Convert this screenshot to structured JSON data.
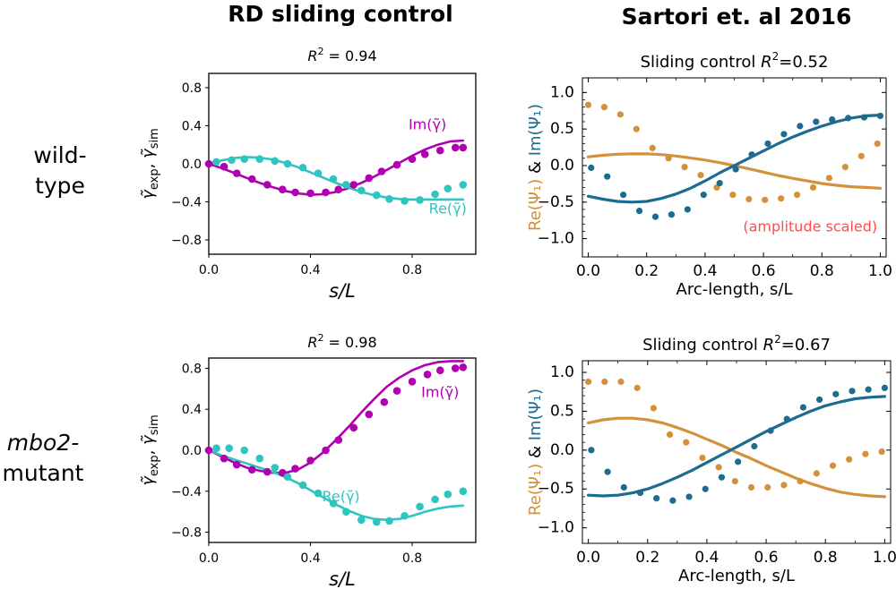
{
  "headers": {
    "left": "RD sliding control",
    "right": "Sartori et. al 2016"
  },
  "row_labels": {
    "wild_line1": "wild-",
    "wild_line2": "type",
    "mutant_line1": "mbo2-",
    "mutant_line2": "mutant"
  },
  "colors": {
    "im": "#b000b0",
    "re": "#2ec4c0",
    "sart_re": "#d4913b",
    "sart_im": "#1d6b8e",
    "note": "#ff4c4c"
  },
  "labels": {
    "left_x": "s/L",
    "left_y_gamma": "γ̃",
    "left_y_exp": "exp",
    "left_y_comma": ",",
    "left_y_sim": "sim",
    "left_im": "Im(γ̃)",
    "left_re": "Re(γ̃)",
    "right_x": "Arc-length, s/L",
    "right_y_re": "Re(Ψ₁)",
    "right_y_amp": " & ",
    "right_y_im": "Im(Ψ₁)"
  },
  "chart_data": [
    {
      "id": "rd_wildtype",
      "type": "line",
      "title": "R² = 0.94",
      "title_prefix": "R",
      "title_exp": "2",
      "title_value": " = 0.94",
      "xlabel": "s/L",
      "ylabel": "γ̃exp, γ̃sim",
      "xlim": [
        0,
        1.05
      ],
      "ylim": [
        -0.95,
        0.95
      ],
      "xticks": [
        0.0,
        0.4,
        0.8
      ],
      "xtick_labels": [
        "0.0",
        "0.4",
        "0.8"
      ],
      "yticks": [
        0.8,
        0.4,
        0.0,
        -0.4,
        -0.8
      ],
      "ytick_labels": [
        "0.8",
        "0.4",
        "0.0",
        "−0.4",
        "−0.8"
      ],
      "series": [
        {
          "name": "Im(γ̃)",
          "kind": "line",
          "color": "#b000b0",
          "x": [
            0,
            0.05,
            0.1,
            0.15,
            0.2,
            0.25,
            0.3,
            0.35,
            0.4,
            0.45,
            0.5,
            0.55,
            0.6,
            0.65,
            0.7,
            0.75,
            0.8,
            0.85,
            0.9,
            0.95,
            1.0
          ],
          "y": [
            0,
            -0.045,
            -0.095,
            -0.15,
            -0.2,
            -0.245,
            -0.285,
            -0.31,
            -0.325,
            -0.32,
            -0.295,
            -0.255,
            -0.2,
            -0.135,
            -0.065,
            0.01,
            0.085,
            0.15,
            0.2,
            0.235,
            0.245
          ]
        },
        {
          "name": "Re(γ̃)",
          "kind": "line",
          "color": "#2ec4c0",
          "x": [
            0,
            0.05,
            0.1,
            0.15,
            0.2,
            0.25,
            0.3,
            0.35,
            0.4,
            0.45,
            0.5,
            0.55,
            0.6,
            0.65,
            0.7,
            0.75,
            0.8,
            0.85,
            0.9,
            0.95,
            1.0
          ],
          "y": [
            0,
            0.035,
            0.06,
            0.07,
            0.065,
            0.045,
            0.01,
            -0.035,
            -0.09,
            -0.145,
            -0.2,
            -0.25,
            -0.295,
            -0.33,
            -0.355,
            -0.37,
            -0.375,
            -0.375,
            -0.375,
            -0.375,
            -0.375
          ]
        },
        {
          "name": "Im(γ̃) exp",
          "kind": "scatter",
          "color": "#b000b0",
          "x": [
            0,
            0.06,
            0.11,
            0.17,
            0.23,
            0.29,
            0.34,
            0.4,
            0.46,
            0.51,
            0.57,
            0.63,
            0.68,
            0.74,
            0.8,
            0.85,
            0.91,
            0.97,
            1.0
          ],
          "y": [
            0,
            -0.03,
            -0.1,
            -0.16,
            -0.22,
            -0.27,
            -0.3,
            -0.31,
            -0.3,
            -0.27,
            -0.22,
            -0.15,
            -0.08,
            -0.01,
            0.05,
            0.1,
            0.14,
            0.17,
            0.17
          ]
        },
        {
          "name": "Re(γ̃) exp",
          "kind": "scatter",
          "color": "#2ec4c0",
          "x": [
            0.03,
            0.09,
            0.14,
            0.2,
            0.26,
            0.31,
            0.37,
            0.43,
            0.49,
            0.54,
            0.6,
            0.66,
            0.71,
            0.77,
            0.83,
            0.89,
            0.94,
            1.0
          ],
          "y": [
            0.02,
            0.04,
            0.05,
            0.05,
            0.03,
            0.0,
            -0.04,
            -0.1,
            -0.16,
            -0.22,
            -0.28,
            -0.33,
            -0.37,
            -0.39,
            -0.38,
            -0.32,
            -0.26,
            -0.22
          ]
        }
      ]
    },
    {
      "id": "rd_mutant",
      "type": "line",
      "title": "R² = 0.98",
      "title_prefix": "R",
      "title_exp": "2",
      "title_value": " = 0.98",
      "xlabel": "s/L",
      "ylabel": "γ̃exp, γ̃sim",
      "xlim": [
        0,
        1.05
      ],
      "ylim": [
        -0.9,
        0.9
      ],
      "xticks": [
        0.0,
        0.4,
        0.8
      ],
      "xtick_labels": [
        "0.0",
        "0.4",
        "0.8"
      ],
      "yticks": [
        0.8,
        0.4,
        0.0,
        -0.4,
        -0.8
      ],
      "ytick_labels": [
        "0.8",
        "0.4",
        "0.0",
        "−0.4",
        "−0.8"
      ],
      "series": [
        {
          "name": "Im(γ̃)",
          "kind": "line",
          "color": "#b000b0",
          "x": [
            0,
            0.05,
            0.1,
            0.15,
            0.2,
            0.25,
            0.3,
            0.35,
            0.4,
            0.45,
            0.5,
            0.55,
            0.6,
            0.65,
            0.7,
            0.75,
            0.8,
            0.85,
            0.9,
            0.95,
            1.0
          ],
          "y": [
            0,
            -0.06,
            -0.12,
            -0.17,
            -0.2,
            -0.22,
            -0.22,
            -0.19,
            -0.12,
            -0.02,
            0.1,
            0.23,
            0.37,
            0.5,
            0.62,
            0.71,
            0.78,
            0.83,
            0.86,
            0.87,
            0.87
          ]
        },
        {
          "name": "Re(γ̃)",
          "kind": "line",
          "color": "#2ec4c0",
          "x": [
            0,
            0.05,
            0.1,
            0.15,
            0.2,
            0.25,
            0.3,
            0.35,
            0.4,
            0.45,
            0.5,
            0.55,
            0.6,
            0.65,
            0.7,
            0.75,
            0.8,
            0.85,
            0.9,
            0.95,
            1.0
          ],
          "y": [
            0,
            -0.05,
            -0.09,
            -0.13,
            -0.17,
            -0.21,
            -0.26,
            -0.32,
            -0.39,
            -0.46,
            -0.53,
            -0.59,
            -0.64,
            -0.67,
            -0.68,
            -0.67,
            -0.64,
            -0.6,
            -0.57,
            -0.55,
            -0.54
          ]
        },
        {
          "name": "Im(γ̃) exp",
          "kind": "scatter",
          "color": "#b000b0",
          "x": [
            0,
            0.06,
            0.11,
            0.17,
            0.23,
            0.29,
            0.34,
            0.4,
            0.46,
            0.51,
            0.57,
            0.63,
            0.69,
            0.74,
            0.8,
            0.86,
            0.91,
            0.97,
            1.0
          ],
          "y": [
            0,
            -0.08,
            -0.14,
            -0.19,
            -0.21,
            -0.22,
            -0.18,
            -0.1,
            0.0,
            0.1,
            0.22,
            0.35,
            0.47,
            0.58,
            0.67,
            0.74,
            0.78,
            0.8,
            0.81
          ]
        },
        {
          "name": "Re(γ̃) exp",
          "kind": "scatter",
          "color": "#2ec4c0",
          "x": [
            0.03,
            0.08,
            0.14,
            0.2,
            0.26,
            0.31,
            0.37,
            0.43,
            0.49,
            0.54,
            0.6,
            0.66,
            0.71,
            0.77,
            0.83,
            0.89,
            0.94,
            1.0
          ],
          "y": [
            0.02,
            0.02,
            0.0,
            -0.08,
            -0.17,
            -0.26,
            -0.34,
            -0.42,
            -0.52,
            -0.6,
            -0.68,
            -0.7,
            -0.69,
            -0.64,
            -0.55,
            -0.48,
            -0.43,
            -0.4
          ]
        }
      ]
    },
    {
      "id": "sartori_wildtype",
      "type": "line",
      "title": "Sliding control  R²=0.52",
      "title_text": "Sliding control",
      "title_prefix": "R",
      "title_exp": "2",
      "title_value": "=0.52",
      "xlabel": "Arc-length, s/L",
      "ylabel": "Re(Ψ₁) & Im(Ψ₁)",
      "annotation": "(amplitude scaled)",
      "xlim": [
        -0.02,
        1.02
      ],
      "ylim": [
        -1.25,
        1.2
      ],
      "xticks": [
        0.0,
        0.2,
        0.4,
        0.6,
        0.8,
        1.0
      ],
      "xtick_labels": [
        "0.0",
        "0.2",
        "0.4",
        "0.6",
        "0.8",
        "1.0"
      ],
      "yticks": [
        1.0,
        0.5,
        0.0,
        -0.5,
        -1.0
      ],
      "ytick_labels": [
        "1.0",
        "0.5",
        "0.0",
        "−0.5",
        "−1.0"
      ],
      "series": [
        {
          "name": "Re(Ψ₁) fit",
          "kind": "line",
          "color": "#d4913b",
          "x": [
            0,
            0.05,
            0.1,
            0.15,
            0.2,
            0.25,
            0.3,
            0.35,
            0.4,
            0.45,
            0.5,
            0.55,
            0.6,
            0.65,
            0.7,
            0.75,
            0.8,
            0.85,
            0.9,
            0.95,
            1.0
          ],
          "y": [
            0.12,
            0.14,
            0.155,
            0.16,
            0.16,
            0.15,
            0.13,
            0.105,
            0.075,
            0.04,
            0.0,
            -0.045,
            -0.09,
            -0.135,
            -0.175,
            -0.21,
            -0.245,
            -0.27,
            -0.29,
            -0.3,
            -0.31
          ]
        },
        {
          "name": "Im(Ψ₁) fit",
          "kind": "line",
          "color": "#1d6b8e",
          "x": [
            0,
            0.05,
            0.1,
            0.15,
            0.2,
            0.25,
            0.3,
            0.35,
            0.4,
            0.45,
            0.5,
            0.55,
            0.6,
            0.65,
            0.7,
            0.75,
            0.8,
            0.85,
            0.9,
            0.95,
            1.0
          ],
          "y": [
            -0.42,
            -0.46,
            -0.49,
            -0.5,
            -0.49,
            -0.45,
            -0.39,
            -0.31,
            -0.21,
            -0.1,
            0.0,
            0.1,
            0.2,
            0.3,
            0.39,
            0.47,
            0.54,
            0.6,
            0.65,
            0.68,
            0.69
          ]
        },
        {
          "name": "Re(Ψ₁) data",
          "kind": "scatter",
          "color": "#d4913b",
          "x": [
            0,
            0.055,
            0.11,
            0.165,
            0.22,
            0.275,
            0.33,
            0.385,
            0.44,
            0.495,
            0.55,
            0.605,
            0.66,
            0.715,
            0.77,
            0.825,
            0.88,
            0.935,
            0.99
          ],
          "y": [
            0.83,
            0.8,
            0.7,
            0.5,
            0.24,
            0.1,
            -0.02,
            -0.13,
            -0.3,
            -0.4,
            -0.46,
            -0.47,
            -0.45,
            -0.4,
            -0.3,
            -0.17,
            -0.02,
            0.13,
            0.3
          ]
        },
        {
          "name": "Im(Ψ₁) data",
          "kind": "scatter",
          "color": "#1d6b8e",
          "x": [
            0.01,
            0.065,
            0.12,
            0.175,
            0.23,
            0.285,
            0.34,
            0.395,
            0.45,
            0.505,
            0.56,
            0.615,
            0.67,
            0.725,
            0.78,
            0.835,
            0.89,
            0.945,
            1.0
          ],
          "y": [
            -0.03,
            -0.15,
            -0.4,
            -0.62,
            -0.7,
            -0.67,
            -0.6,
            -0.4,
            -0.24,
            -0.05,
            0.15,
            0.3,
            0.43,
            0.54,
            0.6,
            0.63,
            0.65,
            0.66,
            0.68
          ]
        }
      ]
    },
    {
      "id": "sartori_mutant",
      "type": "line",
      "title": "Sliding control  R²=0.67",
      "title_text": "Sliding control",
      "title_prefix": "R",
      "title_exp": "2",
      "title_value": "=0.67",
      "xlabel": "Arc-length, s/L",
      "ylabel": "Re(Ψ₁) & Im(Ψ₁)",
      "xlim": [
        -0.02,
        1.02
      ],
      "ylim": [
        -1.2,
        1.15
      ],
      "xticks": [
        0.0,
        0.2,
        0.4,
        0.6,
        0.8,
        1.0
      ],
      "xtick_labels": [
        "0.0",
        "0.2",
        "0.4",
        "0.6",
        "0.8",
        "1.0"
      ],
      "yticks": [
        1.0,
        0.5,
        0.0,
        -0.5,
        -1.0
      ],
      "ytick_labels": [
        "1.0",
        "0.5",
        "0.0",
        "−0.5",
        "−1.0"
      ],
      "series": [
        {
          "name": "Re(Ψ₁) fit",
          "kind": "line",
          "color": "#d4913b",
          "x": [
            0,
            0.05,
            0.1,
            0.15,
            0.2,
            0.25,
            0.3,
            0.35,
            0.4,
            0.45,
            0.5,
            0.55,
            0.6,
            0.65,
            0.7,
            0.75,
            0.8,
            0.85,
            0.9,
            0.95,
            1.0
          ],
          "y": [
            0.35,
            0.39,
            0.41,
            0.41,
            0.39,
            0.35,
            0.29,
            0.22,
            0.14,
            0.06,
            -0.03,
            -0.11,
            -0.2,
            -0.28,
            -0.36,
            -0.43,
            -0.49,
            -0.54,
            -0.57,
            -0.59,
            -0.6
          ]
        },
        {
          "name": "Im(Ψ₁) fit",
          "kind": "line",
          "color": "#1d6b8e",
          "x": [
            0,
            0.05,
            0.1,
            0.15,
            0.2,
            0.25,
            0.3,
            0.35,
            0.4,
            0.45,
            0.5,
            0.55,
            0.6,
            0.65,
            0.7,
            0.75,
            0.8,
            0.85,
            0.9,
            0.95,
            1.0
          ],
          "y": [
            -0.58,
            -0.59,
            -0.58,
            -0.55,
            -0.5,
            -0.43,
            -0.35,
            -0.26,
            -0.16,
            -0.06,
            0.04,
            0.14,
            0.24,
            0.33,
            0.42,
            0.5,
            0.57,
            0.62,
            0.66,
            0.68,
            0.69
          ]
        },
        {
          "name": "Re(Ψ₁) data",
          "kind": "scatter",
          "color": "#d4913b",
          "x": [
            0,
            0.055,
            0.11,
            0.165,
            0.22,
            0.275,
            0.33,
            0.385,
            0.44,
            0.495,
            0.55,
            0.605,
            0.66,
            0.715,
            0.77,
            0.825,
            0.88,
            0.935,
            0.99
          ],
          "y": [
            0.88,
            0.88,
            0.88,
            0.8,
            0.54,
            0.2,
            0.1,
            -0.1,
            -0.22,
            -0.4,
            -0.48,
            -0.48,
            -0.45,
            -0.4,
            -0.3,
            -0.2,
            -0.12,
            -0.05,
            -0.02
          ]
        },
        {
          "name": "Im(Ψ₁) data",
          "kind": "scatter",
          "color": "#1d6b8e",
          "x": [
            0.01,
            0.065,
            0.12,
            0.175,
            0.23,
            0.285,
            0.34,
            0.395,
            0.45,
            0.505,
            0.56,
            0.615,
            0.67,
            0.725,
            0.78,
            0.835,
            0.89,
            0.945,
            1.0
          ],
          "y": [
            0.0,
            -0.28,
            -0.48,
            -0.55,
            -0.62,
            -0.65,
            -0.6,
            -0.5,
            -0.35,
            -0.15,
            0.05,
            0.25,
            0.4,
            0.55,
            0.65,
            0.72,
            0.76,
            0.78,
            0.8
          ]
        }
      ]
    }
  ]
}
